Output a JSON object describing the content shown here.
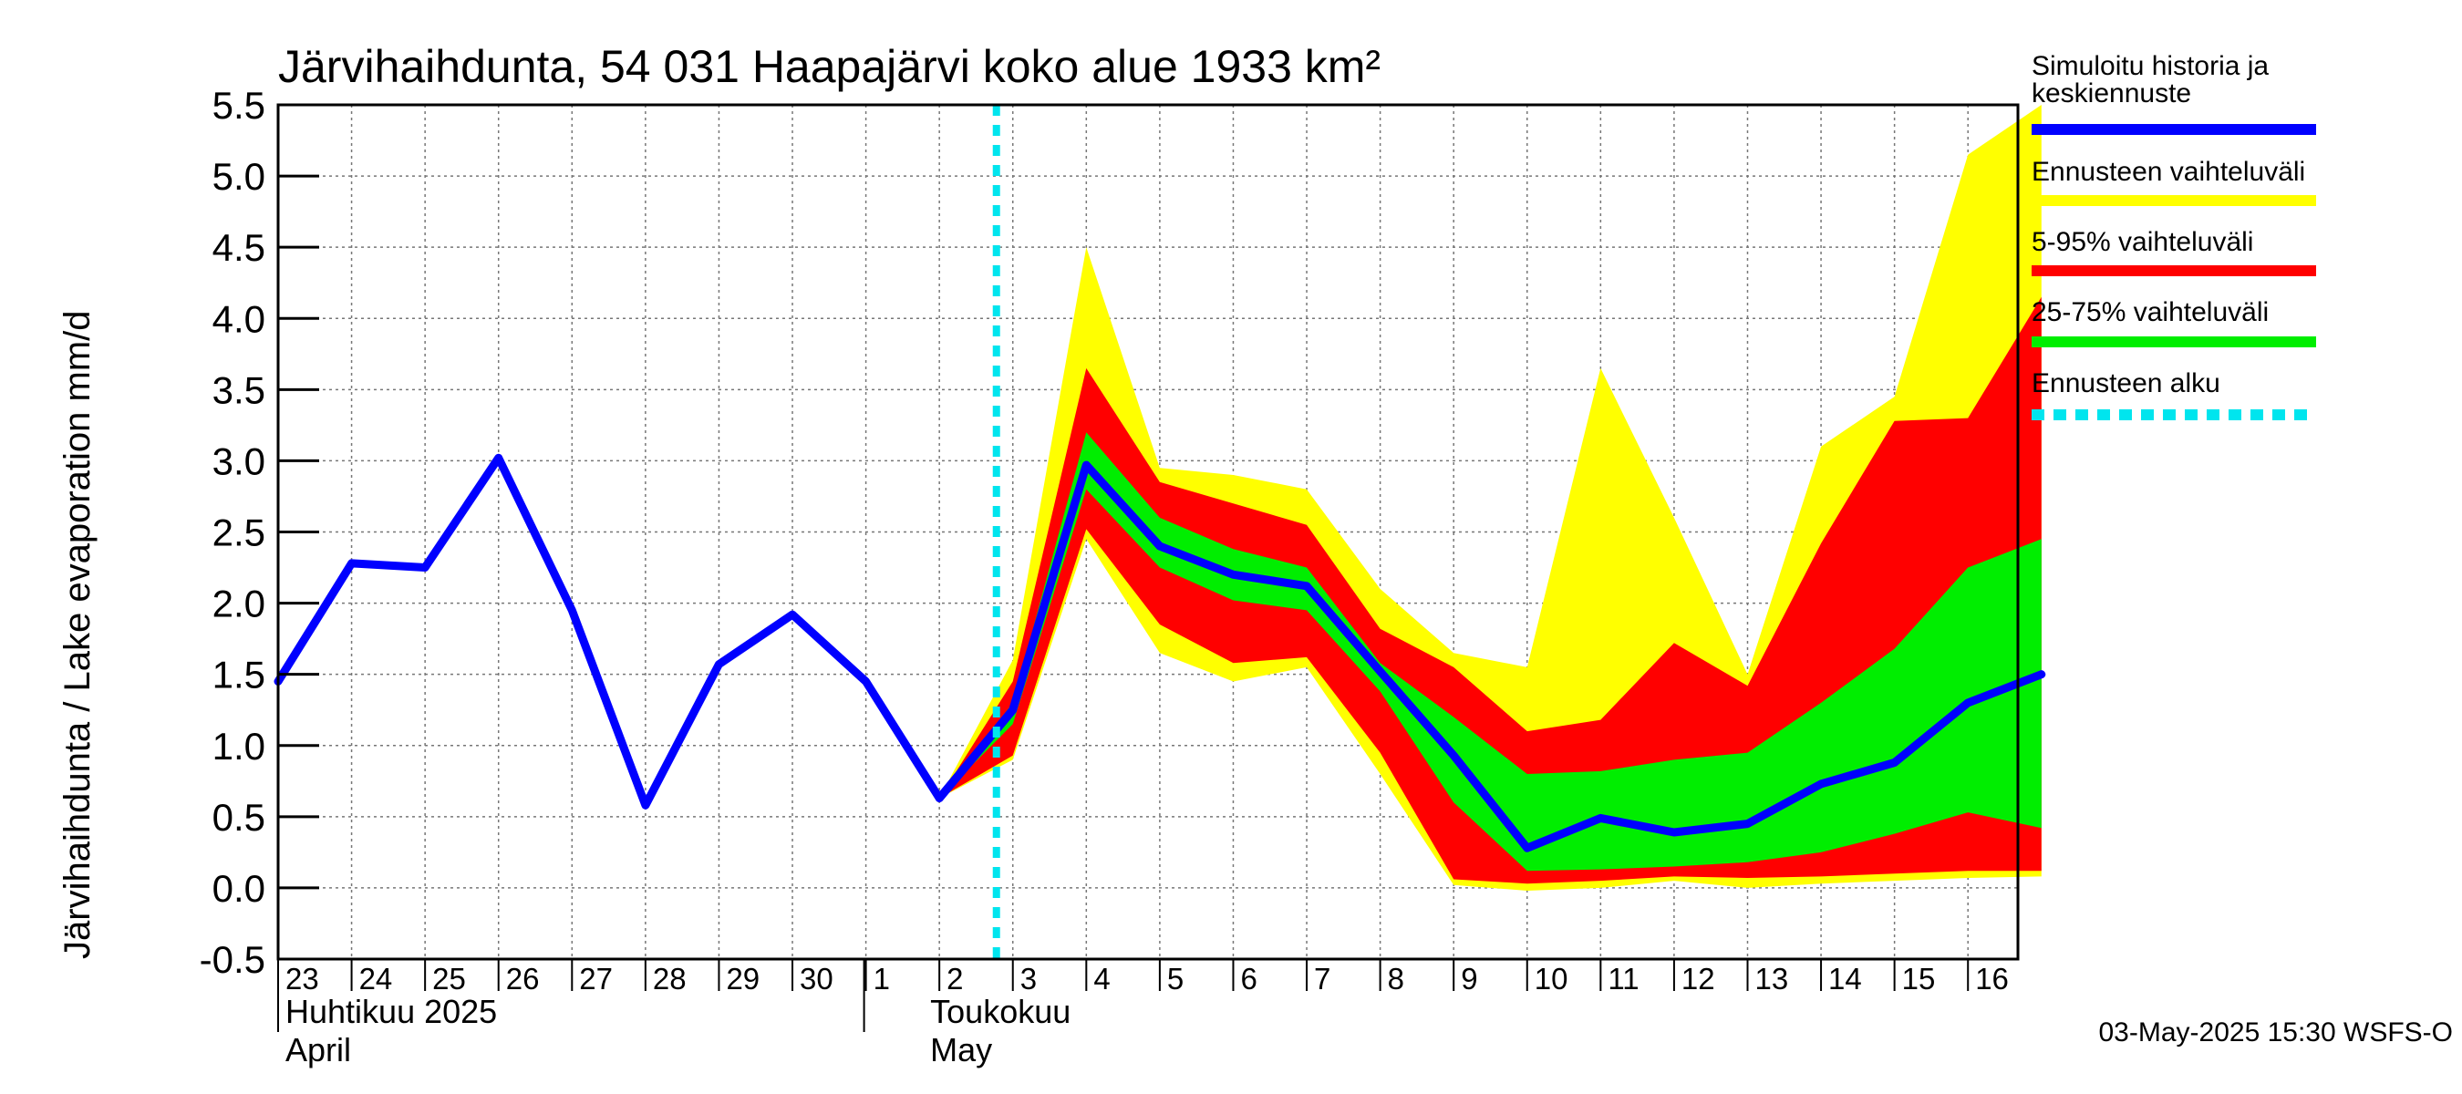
{
  "chart_data": {
    "type": "area",
    "title": "Järvihaihdunta, 54 031 Haapajärvi koko alue 1933 km²",
    "ylabel": "Järvihaihdunta / Lake evaporation   mm/d",
    "ylim": [
      -0.5,
      5.5
    ],
    "yticks": [
      "5.5",
      "5.0",
      "4.5",
      "4.0",
      "3.5",
      "3.0",
      "2.5",
      "2.0",
      "1.5",
      "1.0",
      "0.5",
      "0.0",
      "-0.5"
    ],
    "ytick_values": [
      5.5,
      5.0,
      4.5,
      4.0,
      3.5,
      3.0,
      2.5,
      2.0,
      1.5,
      1.0,
      0.5,
      0.0,
      -0.5
    ],
    "x_day_labels": [
      "23",
      "24",
      "25",
      "26",
      "27",
      "28",
      "29",
      "30",
      "1",
      "2",
      "3",
      "4",
      "5",
      "6",
      "7",
      "8",
      "9",
      "10",
      "11",
      "12",
      "13",
      "14",
      "15",
      "16"
    ],
    "month_labels": [
      {
        "line1": "Huhtikuu  2025",
        "line2": "April"
      },
      {
        "line1": "Toukokuu",
        "line2": "May"
      }
    ],
    "grid": true,
    "legend_position": "right",
    "forecast_start_index": 10,
    "history": {
      "name": "Simuloitu historia ja keskiennuste",
      "values": [
        1.45,
        2.28,
        2.25,
        3.02,
        1.95,
        0.58,
        1.57,
        1.92,
        1.45,
        0.63,
        1.25
      ]
    },
    "forecast_median": [
      0.63,
      1.25,
      2.97,
      2.4,
      2.2,
      2.12,
      1.52,
      0.93,
      0.28,
      0.49,
      0.39,
      0.45,
      0.73,
      0.88,
      1.3,
      1.5
    ],
    "band_x_start_index": 9,
    "bands": [
      {
        "name": "Ennusteen vaihteluväli",
        "color": "#ffff00",
        "upper": [
          0.63,
          1.6,
          4.5,
          2.95,
          2.9,
          2.8,
          2.1,
          1.65,
          1.55,
          3.65,
          2.6,
          1.5,
          3.1,
          3.45,
          5.15,
          5.5
        ],
        "lower": [
          0.63,
          0.9,
          2.45,
          1.65,
          1.45,
          1.55,
          0.8,
          0.02,
          -0.02,
          0.0,
          0.05,
          0.0,
          0.03,
          0.05,
          0.07,
          0.08
        ]
      },
      {
        "name": "5-95% vaihteluväli",
        "color": "#ff0000",
        "upper": [
          0.63,
          1.45,
          3.65,
          2.85,
          2.7,
          2.55,
          1.82,
          1.55,
          1.1,
          1.18,
          1.72,
          1.42,
          2.42,
          3.28,
          3.3,
          4.15
        ],
        "lower": [
          0.63,
          0.93,
          2.52,
          1.85,
          1.58,
          1.62,
          0.95,
          0.06,
          0.03,
          0.05,
          0.08,
          0.07,
          0.08,
          0.1,
          0.12,
          0.12
        ]
      },
      {
        "name": "25-75% vaihteluväli",
        "color": "#00ee00",
        "upper": [
          0.63,
          1.3,
          3.2,
          2.6,
          2.38,
          2.25,
          1.58,
          1.2,
          0.8,
          0.82,
          0.9,
          0.95,
          1.3,
          1.68,
          2.25,
          2.45
        ],
        "lower": [
          0.63,
          1.15,
          2.8,
          2.25,
          2.02,
          1.95,
          1.38,
          0.6,
          0.12,
          0.13,
          0.15,
          0.18,
          0.25,
          0.38,
          0.53,
          0.42
        ]
      }
    ],
    "legend": [
      {
        "label": "Simuloitu historia ja keskiennuste",
        "color": "#0000ff",
        "style": "solid"
      },
      {
        "label": "Ennusteen vaihteluväli",
        "color": "#ffff00",
        "style": "solid"
      },
      {
        "label": "5-95% vaihteluväli",
        "color": "#ff0000",
        "style": "solid"
      },
      {
        "label": "25-75% vaihteluväli",
        "color": "#00ee00",
        "style": "solid"
      },
      {
        "label": "Ennusteen alku",
        "color": "#00e5ee",
        "style": "dashed"
      }
    ],
    "footer": "03-May-2025 15:30 WSFS-O"
  }
}
